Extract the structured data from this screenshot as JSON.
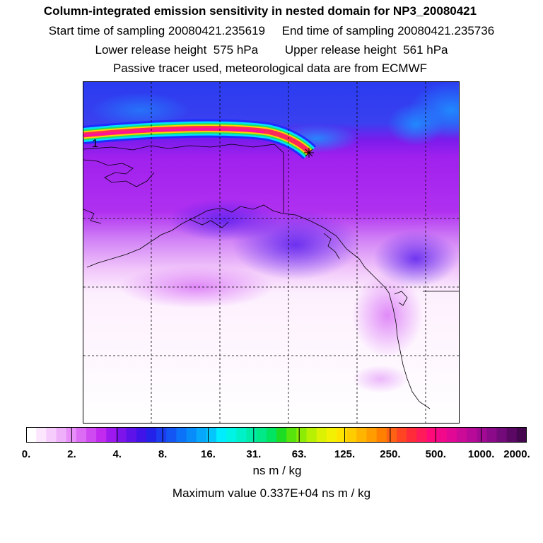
{
  "header": {
    "title": "Column-integrated emission sensitivity in nested domain for NP3_20080421",
    "line1": "Start time of sampling 20080421.235619     End time of sampling 20080421.235736",
    "line2": "Lower release height  575 hPa        Upper release height  561 hPa",
    "line3": "Passive tracer used, meteorological data are from ECMWF"
  },
  "map": {
    "release_marker": "1",
    "colors": {
      "upper_band": "#2a3cf0",
      "mid_band": "#9a1fe8",
      "lower_band": "#f3c8f8",
      "plume": "#ff1a8c"
    }
  },
  "colorbar": {
    "tick_labels": [
      "0.",
      "2.",
      "4.",
      "8.",
      "16.",
      "31.",
      "63.",
      "125.",
      "250.",
      "500.",
      "1000.",
      "2000."
    ],
    "colors": [
      "#ffffff",
      "#fbe6fe",
      "#f6ccfc",
      "#efb0fa",
      "#e78ef8",
      "#dd6cf5",
      "#d04af2",
      "#c22af0",
      "#9d19ee",
      "#7d14ec",
      "#5d12ea",
      "#4013e8",
      "#2422e8",
      "#1c3cf0",
      "#1456f4",
      "#0c72f8",
      "#088cfa",
      "#06a8fb",
      "#04c6fc",
      "#00ecff",
      "#00f4e6",
      "#00f0c8",
      "#00eca8",
      "#00e888",
      "#00e462",
      "#1cdc24",
      "#56e40c",
      "#8cec06",
      "#b8f004",
      "#dcf204",
      "#f4f004",
      "#ffe400",
      "#ffcc00",
      "#ffb400",
      "#ff9c00",
      "#ff8000",
      "#ff6214",
      "#ff4424",
      "#ff2a3a",
      "#ff1a5a",
      "#ff0a78",
      "#f2088a",
      "#e00894",
      "#cc0a98",
      "#b80a98",
      "#a20a94",
      "#8a0a8a",
      "#720a7a",
      "#5a0864",
      "#44064c"
    ]
  },
  "units": "ns m / kg",
  "max_value": "Maximum value  0.337E+04 ns m / kg"
}
